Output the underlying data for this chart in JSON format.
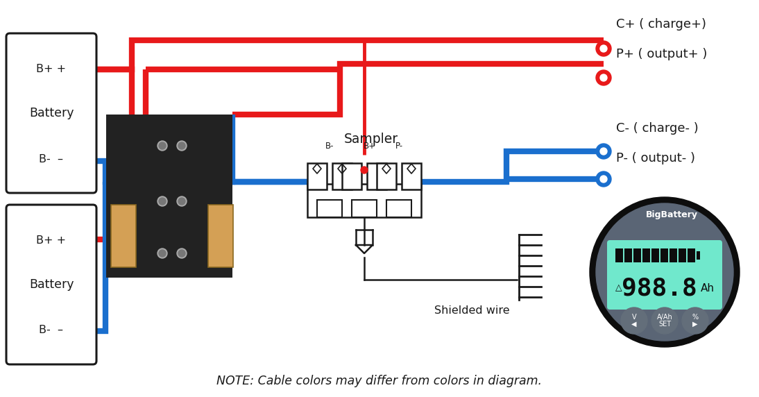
{
  "bg_color": "#ffffff",
  "red": "#e8191a",
  "blue": "#1a6fce",
  "black": "#1a1a1a",
  "wire_lw": 6,
  "note_text": "NOTE: Cable colors may differ from colors in diagram.",
  "label_c_plus": "C+ ( charge+)",
  "label_p_plus": "P+ ( output+ )",
  "label_c_minus": "C- ( charge- )",
  "label_p_minus": "P- ( output- )",
  "label_sampler": "Sampler",
  "label_shielded": "Shielded wire",
  "battery_labels": [
    "B+ +",
    "Battery",
    "B-  –"
  ],
  "meter_bg": "#5a6575",
  "meter_screen_color": "#70e8cc",
  "meter_text": "988.8",
  "meter_unit": "Ah",
  "meter_brand": "BigBattery",
  "shunt_color": "#222222",
  "bubar_color": "#d4a055",
  "bubar_edge": "#8a6820"
}
